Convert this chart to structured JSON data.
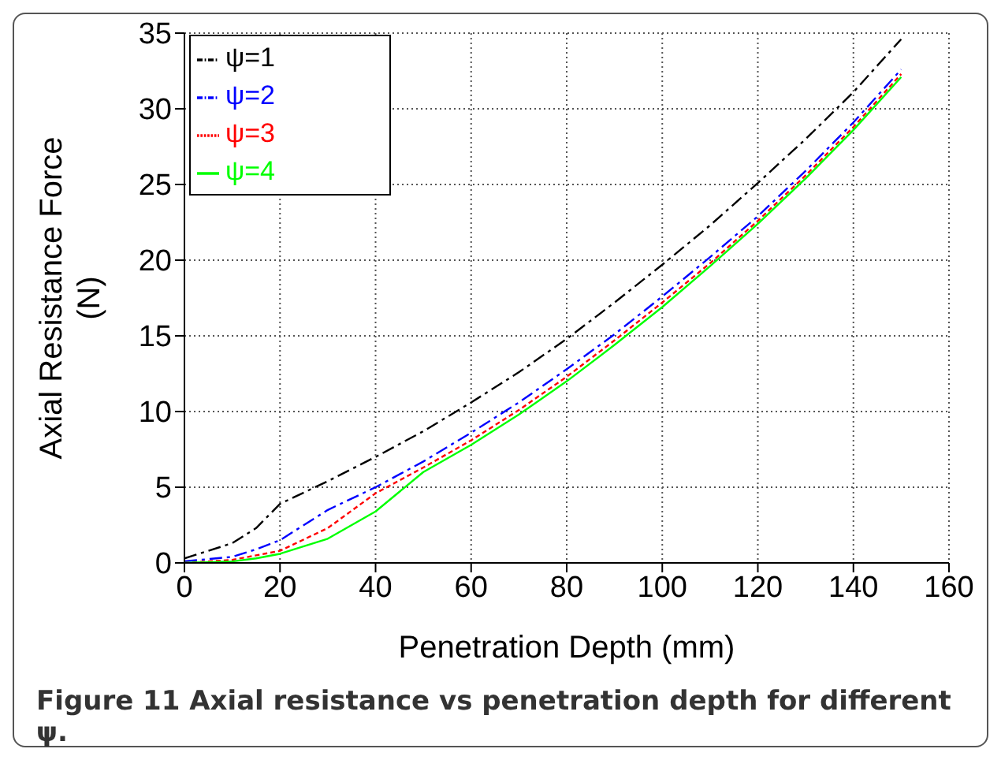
{
  "chart_data": {
    "type": "line",
    "xlabel": "Penetration Depth (mm)",
    "ylabel": "Axial Resistance Force\n(N)",
    "annotations": [
      "Figure 11 Axial resistance vs penetration depth for different ψ."
    ],
    "x": [
      0,
      10,
      15,
      20,
      30,
      40,
      50,
      60,
      70,
      80,
      90,
      100,
      110,
      120,
      130,
      140,
      150
    ],
    "series": [
      {
        "name": "ψ=1",
        "color": "#000000",
        "line_style": "dashed",
        "values": [
          0.3,
          1.3,
          2.3,
          3.9,
          5.4,
          7.0,
          8.7,
          10.6,
          12.6,
          14.8,
          17.2,
          19.7,
          22.3,
          25.1,
          28.0,
          31.1,
          34.6
        ]
      },
      {
        "name": "ψ=2",
        "color": "#0000ff",
        "line_style": "dashed",
        "values": [
          0.1,
          0.4,
          0.9,
          1.5,
          3.5,
          5.0,
          6.7,
          8.6,
          10.6,
          12.8,
          15.1,
          17.6,
          20.2,
          22.9,
          25.9,
          29.1,
          32.6
        ]
      },
      {
        "name": "ψ=3",
        "color": "#ff0000",
        "line_style": "dotted",
        "values": [
          0,
          0.2,
          0.5,
          0.8,
          2.3,
          4.6,
          6.3,
          8.1,
          10.1,
          12.3,
          14.7,
          17.2,
          19.8,
          22.6,
          25.6,
          28.8,
          32.3
        ]
      },
      {
        "name": "ψ=4",
        "color": "#00ff00",
        "line_style": "solid",
        "values": [
          0,
          0.1,
          0.3,
          0.6,
          1.6,
          3.4,
          6.0,
          7.8,
          9.8,
          12.0,
          14.4,
          16.9,
          19.6,
          22.4,
          25.4,
          28.6,
          32.1
        ]
      }
    ],
    "xlim": [
      0,
      160
    ],
    "xticks": [
      0,
      20,
      40,
      60,
      80,
      100,
      120,
      140,
      160
    ],
    "ylim": [
      0,
      35
    ],
    "yticks": [
      0,
      5,
      10,
      15,
      20,
      25,
      30,
      35
    ],
    "grid": true,
    "legend": "top left",
    "marker": "none"
  }
}
